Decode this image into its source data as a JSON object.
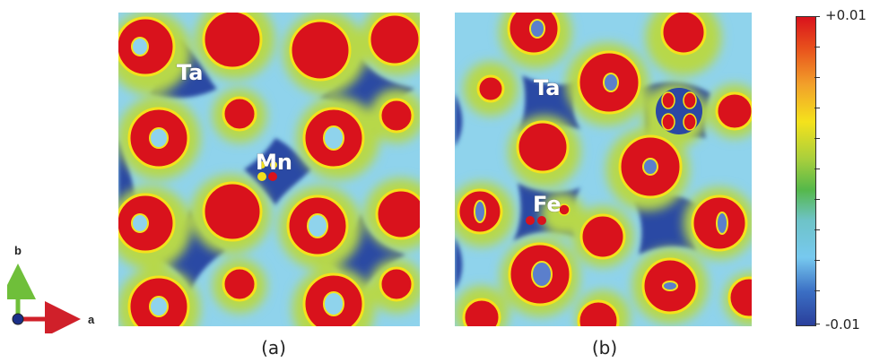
{
  "panels": [
    {
      "id": "a",
      "caption": "(a)",
      "labels": {
        "host": "Ta",
        "dopant": "Mn"
      }
    },
    {
      "id": "b",
      "caption": "(b)",
      "labels": {
        "host": "Ta",
        "dopant": "Fe"
      }
    }
  ],
  "colorbar": {
    "max_label": "+0.01",
    "min_label": "-0.01",
    "colors": [
      "#d9121c",
      "#f4e21c",
      "#55b84a",
      "#77c9ef",
      "#2a3f9b"
    ]
  },
  "axes": {
    "a_label": "a",
    "b_label": "b"
  }
}
